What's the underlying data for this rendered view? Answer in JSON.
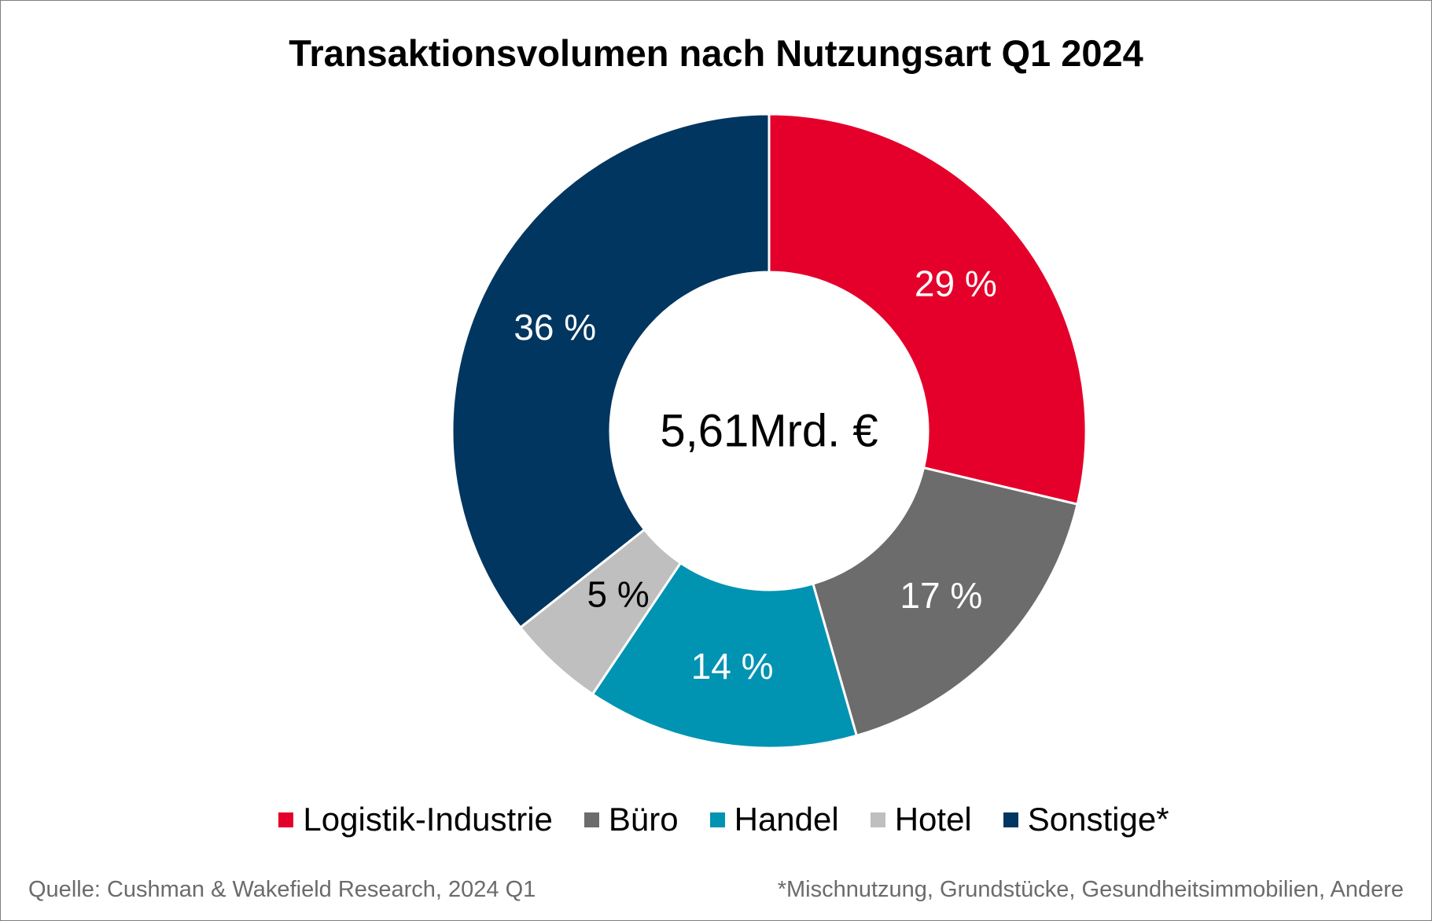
{
  "chart_data": {
    "type": "pie",
    "donut": true,
    "title": "Transaktionsvolumen nach Nutzungsart Q1 2024",
    "center_label": "5,61Mrd. €",
    "categories": [
      "Logistik-Industrie",
      "Büro",
      "Handel",
      "Hotel",
      "Sonstige*"
    ],
    "values": [
      29,
      17,
      14,
      5,
      36
    ],
    "data_labels": [
      "29 %",
      "17 %",
      "14 %",
      "5 %",
      "36 %"
    ],
    "colors": [
      "#E4002B",
      "#6B6C6B",
      "#0093B2",
      "#BFBFBF",
      "#003660"
    ],
    "label_colors": [
      "#FFFFFF",
      "#FFFFFF",
      "#FFFFFF",
      "#000000",
      "#FFFFFF"
    ],
    "legend_position": "bottom"
  },
  "footer": {
    "source": "Quelle: Cushman & Wakefield Research, 2024 Q1",
    "note": "*Mischnutzung, Grundstücke, Gesundheitsimmobilien, Andere"
  }
}
